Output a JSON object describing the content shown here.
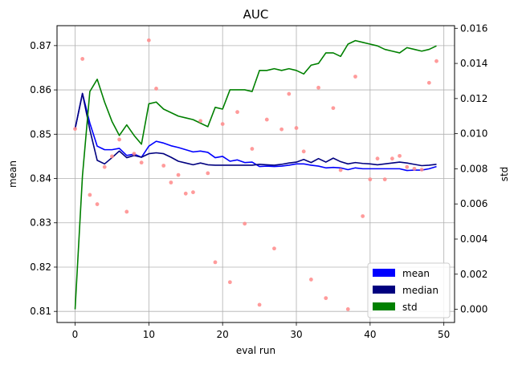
{
  "chart_data": {
    "type": "line",
    "title": "AUC",
    "xlabel": "eval run",
    "ylabel": "mean",
    "ylabel_right": "std",
    "xlim": [
      -2.45,
      51.45
    ],
    "ylim": [
      0.8075,
      0.8745
    ],
    "ylim_right": [
      -0.00075,
      0.01615
    ],
    "x_ticks": [
      0,
      10,
      20,
      30,
      40,
      50
    ],
    "y_ticks": [
      0.81,
      0.82,
      0.83,
      0.84,
      0.85,
      0.86,
      0.87
    ],
    "y_ticks_right": [
      0.0,
      0.002,
      0.004,
      0.006,
      0.008,
      0.01,
      0.012,
      0.014,
      0.016
    ],
    "y_tick_decimals": 2,
    "y_tick_decimals_right": 3,
    "grid": true,
    "legend_position": "bottom-right",
    "x": [
      0,
      1,
      2,
      3,
      4,
      5,
      6,
      7,
      8,
      9,
      10,
      11,
      12,
      13,
      14,
      15,
      16,
      17,
      18,
      19,
      20,
      21,
      22,
      23,
      24,
      25,
      26,
      27,
      28,
      29,
      30,
      31,
      32,
      33,
      34,
      35,
      36,
      37,
      38,
      39,
      40,
      41,
      42,
      43,
      44,
      45,
      46,
      47,
      48,
      49
    ],
    "series": [
      {
        "name": "mean",
        "axis": "left",
        "color": "#0000ff",
        "values": [
          0.8512,
          0.8592,
          0.8525,
          0.8473,
          0.8465,
          0.8465,
          0.8468,
          0.8452,
          0.8455,
          0.8448,
          0.8473,
          0.8484,
          0.848,
          0.8474,
          0.847,
          0.8465,
          0.846,
          0.8462,
          0.8459,
          0.8447,
          0.845,
          0.8439,
          0.8442,
          0.8436,
          0.8437,
          0.8427,
          0.8428,
          0.8427,
          0.8428,
          0.843,
          0.8433,
          0.8433,
          0.843,
          0.8428,
          0.8424,
          0.8425,
          0.8424,
          0.842,
          0.8424,
          0.8422,
          0.8422,
          0.8422,
          0.8422,
          0.8422,
          0.8422,
          0.8418,
          0.8419,
          0.8419,
          0.8422,
          0.8427
        ]
      },
      {
        "name": "median",
        "axis": "left",
        "color": "#00007f",
        "values": [
          0.8512,
          0.8592,
          0.851,
          0.8441,
          0.8433,
          0.8447,
          0.8462,
          0.8447,
          0.8452,
          0.8448,
          0.8456,
          0.8458,
          0.8456,
          0.8448,
          0.8439,
          0.8435,
          0.8431,
          0.8435,
          0.8431,
          0.843,
          0.843,
          0.843,
          0.843,
          0.843,
          0.843,
          0.8432,
          0.8431,
          0.843,
          0.8432,
          0.8435,
          0.8437,
          0.8443,
          0.8436,
          0.8445,
          0.8437,
          0.8446,
          0.8438,
          0.8433,
          0.8436,
          0.8434,
          0.8433,
          0.8431,
          0.8433,
          0.8435,
          0.8437,
          0.8435,
          0.8432,
          0.8429,
          0.843,
          0.8432
        ]
      },
      {
        "name": "std",
        "axis": "right",
        "color": "#008000",
        "values": [
          0.0,
          0.0076,
          0.0124,
          0.0131,
          0.0118,
          0.0107,
          0.0099,
          0.0105,
          0.0099,
          0.0094,
          0.0117,
          0.0118,
          0.0114,
          0.0112,
          0.011,
          0.0109,
          0.0108,
          0.0106,
          0.0104,
          0.0115,
          0.0114,
          0.0125,
          0.0125,
          0.0125,
          0.0124,
          0.0136,
          0.0136,
          0.0137,
          0.0136,
          0.0137,
          0.0136,
          0.0134,
          0.0139,
          0.014,
          0.0146,
          0.0146,
          0.0144,
          0.0151,
          0.0153,
          0.0152,
          0.0151,
          0.015,
          0.0148,
          0.0147,
          0.0146,
          0.0149,
          0.0148,
          0.0147,
          0.0148,
          0.015
        ]
      }
    ],
    "scatter": {
      "axis": "left",
      "color": "#ff8a8a",
      "values": [
        0.8512,
        0.867,
        0.8363,
        0.8342,
        0.8426,
        0.845,
        0.8488,
        0.8325,
        0.8456,
        0.8436,
        0.8712,
        0.8603,
        0.8429,
        0.8391,
        0.8408,
        0.8366,
        0.8369,
        0.853,
        0.8412,
        0.8211,
        0.8523,
        0.8166,
        0.855,
        0.8298,
        0.8467,
        0.8115,
        0.8533,
        0.8242,
        0.8511,
        0.8591,
        0.8514,
        0.8461,
        0.8172,
        0.8605,
        0.813,
        0.8559,
        0.8419,
        0.8105,
        0.863,
        0.8315,
        0.8398,
        0.8445,
        0.8398,
        0.8445,
        0.8451,
        0.8426,
        0.8422,
        0.842,
        0.8616,
        0.8665
      ]
    }
  }
}
